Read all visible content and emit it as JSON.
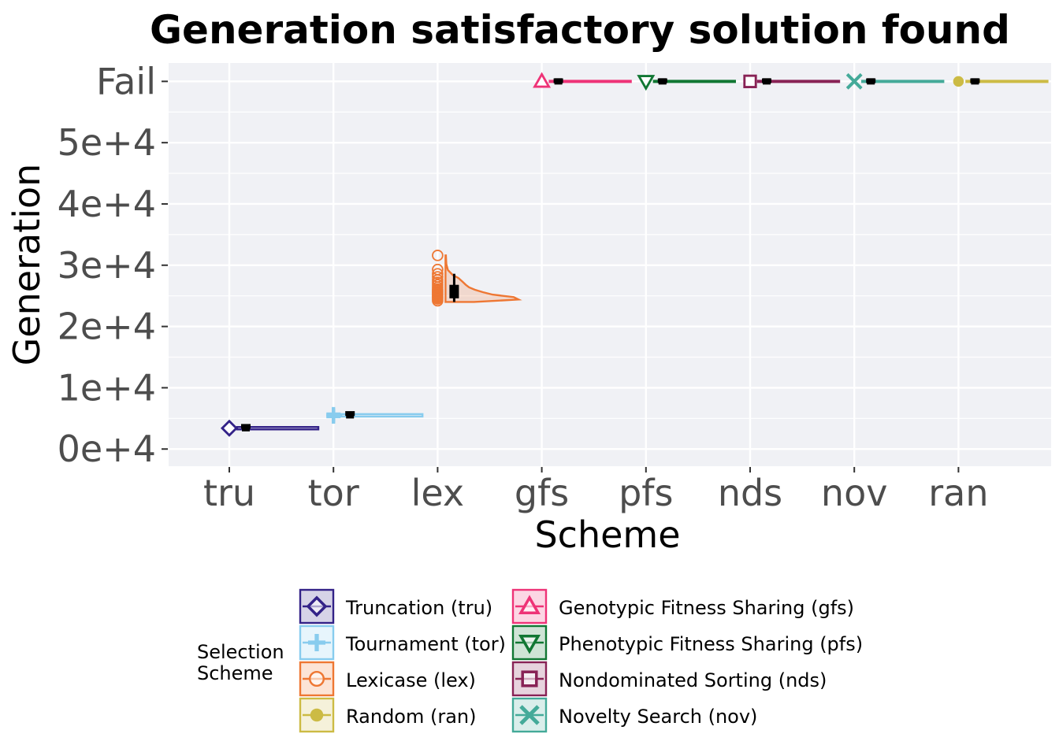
{
  "chart_data": {
    "type": "raincloud",
    "title": "Generation satisfactory solution found",
    "xlabel": "Scheme",
    "ylabel": "Generation",
    "categories": [
      "tru",
      "tor",
      "lex",
      "gfs",
      "pfs",
      "nds",
      "nov",
      "ran"
    ],
    "y_ticks": [
      {
        "value": 0,
        "label": "0e+4"
      },
      {
        "value": 10000,
        "label": "1e+4"
      },
      {
        "value": 20000,
        "label": "2e+4"
      },
      {
        "value": 30000,
        "label": "3e+4"
      },
      {
        "value": 40000,
        "label": "4e+4"
      },
      {
        "value": 50000,
        "label": "5e+4"
      },
      {
        "value": 60000,
        "label": "Fail"
      }
    ],
    "ylim": [
      -2800,
      63000
    ],
    "fail_value": 60000,
    "series": [
      {
        "key": "tru",
        "name": "Truncation (tru)",
        "color": "#332288",
        "shape": "diamond",
        "median": 3400,
        "q1": 3200,
        "q3": 3700,
        "points": [
          3400
        ],
        "violin": [
          [
            3200,
            1.0
          ],
          [
            3400,
            1.0
          ],
          [
            3600,
            1.0
          ]
        ]
      },
      {
        "key": "tor",
        "name": "Tournament (tor)",
        "color": "#88CCEE",
        "shape": "plus",
        "median": 5500,
        "q1": 5200,
        "q3": 5800,
        "points": [
          5300,
          5500,
          5700
        ],
        "violin": [
          [
            5300,
            1.0
          ],
          [
            5500,
            1.0
          ],
          [
            5700,
            1.0
          ]
        ]
      },
      {
        "key": "lex",
        "name": "Lexicase (lex)",
        "color": "#EE7733",
        "shape": "circle",
        "median": 25600,
        "q1": 24600,
        "q3": 26800,
        "whisker_low": 24000,
        "whisker_high": 28600,
        "points": [
          24200,
          24500,
          24700,
          24900,
          25100,
          25300,
          25500,
          25700,
          25900,
          26100,
          26400,
          26800,
          27200,
          27600,
          28100,
          28600,
          29300,
          31600
        ],
        "violin": [
          [
            24000,
            0.35
          ],
          [
            24400,
            0.9
          ],
          [
            24800,
            0.84
          ],
          [
            25200,
            0.58
          ],
          [
            25600,
            0.46
          ],
          [
            26000,
            0.36
          ],
          [
            26400,
            0.29
          ],
          [
            26800,
            0.25
          ],
          [
            27300,
            0.21
          ],
          [
            27900,
            0.16
          ],
          [
            28400,
            0.09
          ],
          [
            29200,
            0.03
          ],
          [
            30200,
            0.01
          ],
          [
            31600,
            0.005
          ]
        ]
      },
      {
        "key": "gfs",
        "name": "Genotypic Fitness Sharing (gfs)",
        "color": "#EE3377",
        "shape": "triangle-up",
        "median": 60000,
        "q1": 59900,
        "q3": 60100,
        "points": [
          60000
        ],
        "violin": [
          [
            59900,
            1.0
          ],
          [
            60000,
            1.0
          ],
          [
            60100,
            1.0
          ]
        ]
      },
      {
        "key": "pfs",
        "name": "Phenotypic Fitness Sharing (pfs)",
        "color": "#117733",
        "shape": "triangle-down",
        "median": 60000,
        "q1": 59900,
        "q3": 60100,
        "points": [
          60000
        ],
        "violin": [
          [
            59900,
            1.0
          ],
          [
            60000,
            1.0
          ],
          [
            60100,
            1.0
          ]
        ]
      },
      {
        "key": "nds",
        "name": "Nondominated Sorting (nds)",
        "color": "#882255",
        "shape": "square-minus",
        "median": 60000,
        "q1": 59900,
        "q3": 60100,
        "points": [
          60000
        ],
        "violin": [
          [
            59900,
            1.0
          ],
          [
            60000,
            1.0
          ],
          [
            60100,
            1.0
          ]
        ]
      },
      {
        "key": "nov",
        "name": "Novelty Search (nov)",
        "color": "#44AA99",
        "shape": "x",
        "median": 60000,
        "q1": 59900,
        "q3": 60100,
        "points": [
          60000
        ],
        "violin": [
          [
            59900,
            1.0
          ],
          [
            60000,
            1.0
          ],
          [
            60100,
            1.0
          ]
        ]
      },
      {
        "key": "ran",
        "name": "Random (ran)",
        "color": "#CCBB44",
        "shape": "dot",
        "median": 60000,
        "q1": 59900,
        "q3": 60100,
        "points": [
          60000
        ],
        "violin": [
          [
            59900,
            1.0
          ],
          [
            60000,
            1.0
          ],
          [
            60100,
            1.0
          ]
        ]
      }
    ],
    "legend": {
      "title_line1": "Selection",
      "title_line2": "Scheme",
      "placement": "bottom",
      "columns": [
        [
          "tru",
          "tor",
          "lex",
          "ran"
        ],
        [
          "gfs",
          "pfs",
          "nds",
          "nov"
        ]
      ]
    }
  }
}
